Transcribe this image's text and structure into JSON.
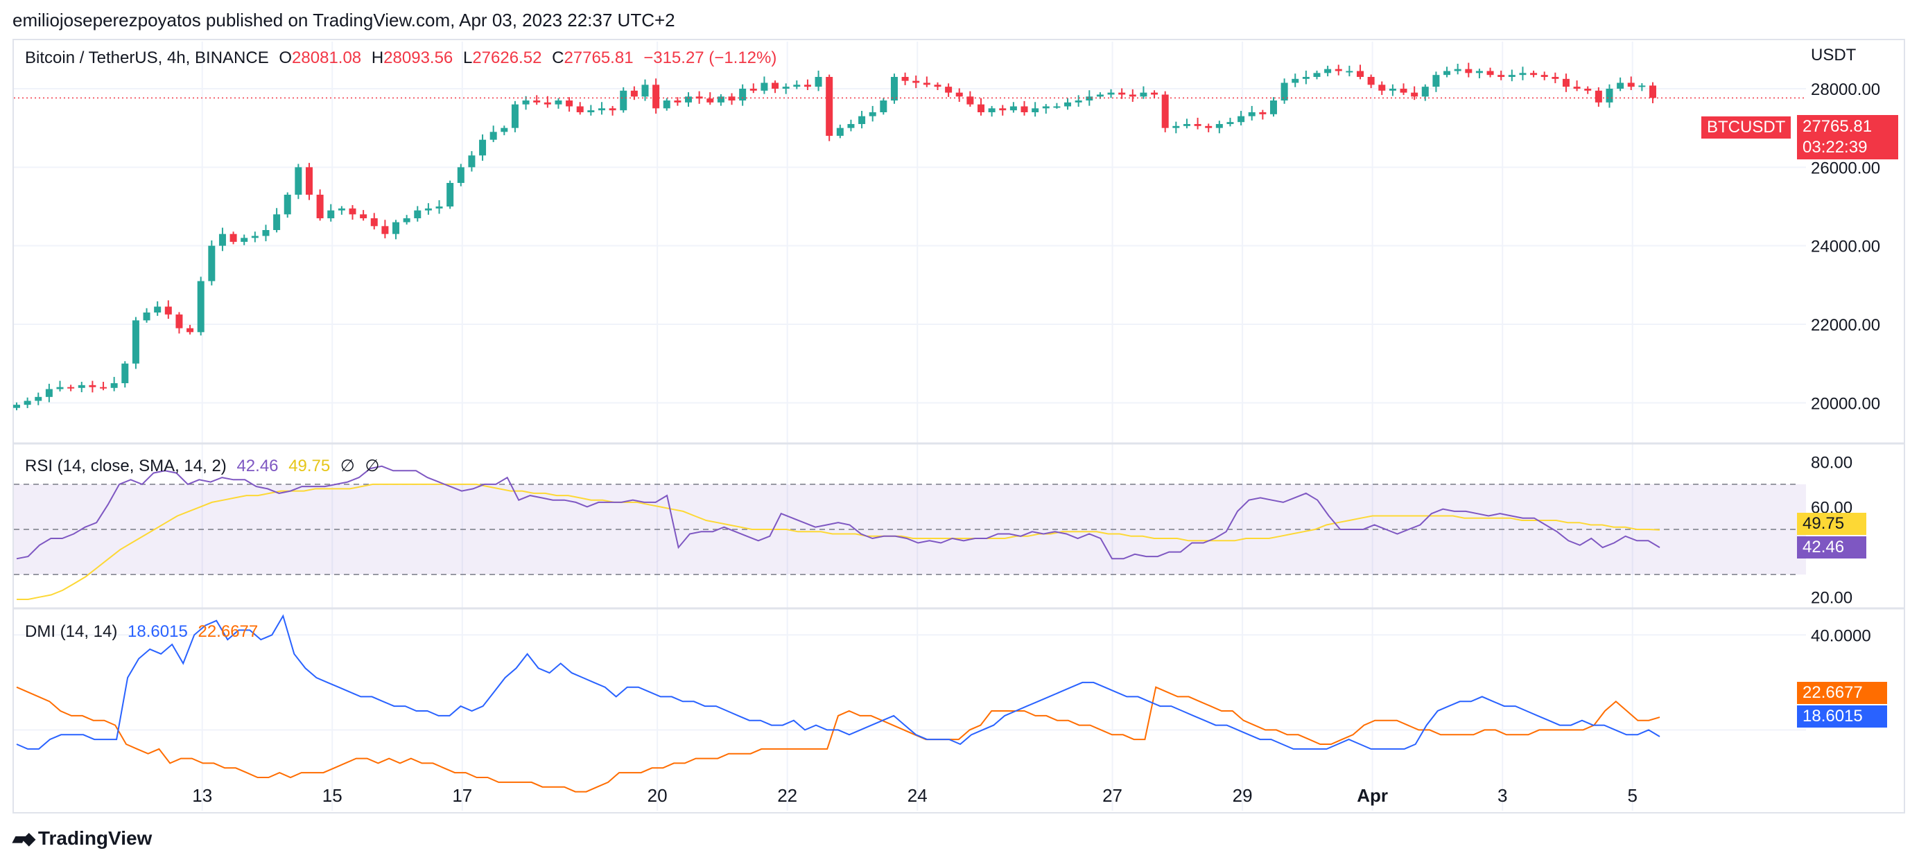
{
  "header": {
    "publisher": "emiliojoseperezpoyatos published on TradingView.com, Apr 03, 2023 22:37 UTC+2"
  },
  "legend": {
    "symbol": "Bitcoin / TetherUS, 4h, BINANCE",
    "o_label": "O",
    "o_val": "28081.08",
    "h_label": "H",
    "h_val": "28093.56",
    "l_label": "L",
    "l_val": "27626.52",
    "c_label": "C",
    "c_val": "27765.81",
    "change": "−315.27 (−1.12%)"
  },
  "rsi_legend": {
    "name": "RSI (14, close, SMA, 14, 2)",
    "rsi": "42.46",
    "sma": "49.75",
    "icons": [
      "∅",
      "∅"
    ]
  },
  "dmi_legend": {
    "name": "DMI (14, 14)",
    "plus": "18.6015",
    "minus": "22.6677"
  },
  "price_axis": {
    "unit": "USDT",
    "ticks": [
      "28000.00",
      "26000.00",
      "24000.00",
      "22000.00",
      "20000.00"
    ]
  },
  "rsi_axis": {
    "ticks": [
      "80.00",
      "60.00",
      "20.00"
    ]
  },
  "dmi_axis": {
    "ticks": [
      "40.0000"
    ]
  },
  "tags": {
    "symbol": "BTCUSDT",
    "price": "27765.81",
    "countdown": "03:22:39",
    "rsi_sma": "49.75",
    "rsi": "42.46",
    "dmi_minus": "22.6677",
    "dmi_plus": "18.6015"
  },
  "x_axis": {
    "labels": [
      "13",
      "15",
      "17",
      "20",
      "22",
      "24",
      "27",
      "29",
      "Apr",
      "3",
      "5"
    ]
  },
  "footer": {
    "brand": "TradingView"
  },
  "colors": {
    "up": "#26a69a",
    "down": "#f23645",
    "rsi": "#7e57c2",
    "rsi_sma": "#fdd835",
    "di_plus": "#2962ff",
    "di_minus": "#ff6d00",
    "grid": "#f0f3fa"
  },
  "chart_data": [
    {
      "type": "candlestick",
      "title": "Bitcoin / TetherUS, 4h, BINANCE",
      "ylabel": "USDT",
      "ylim": [
        19000,
        29200
      ],
      "candles_close": [
        19950,
        20050,
        20150,
        20350,
        20400,
        20380,
        20450,
        20400,
        20380,
        20500,
        21000,
        22100,
        22300,
        22450,
        22250,
        21900,
        21800,
        23100,
        24000,
        24300,
        24100,
        24200,
        24250,
        24400,
        24800,
        25300,
        26000,
        25300,
        24700,
        24900,
        24950,
        24800,
        24700,
        24500,
        24300,
        24600,
        24700,
        24900,
        24950,
        25000,
        25600,
        26000,
        26300,
        26700,
        26900,
        27000,
        27600,
        27700,
        27650,
        27600,
        27700,
        27550,
        27400,
        27450,
        27500,
        27450,
        27950,
        27800,
        28100,
        27500,
        27700,
        27650,
        27800,
        27750,
        27650,
        27800,
        27700,
        28000,
        27950,
        28150,
        28000,
        28050,
        28100,
        28050,
        28300,
        26800,
        27000,
        27100,
        27300,
        27400,
        27700,
        28300,
        28200,
        28150,
        28100,
        28050,
        27900,
        27800,
        27600,
        27400,
        27500,
        27450,
        27550,
        27400,
        27500,
        27550,
        27550,
        27650,
        27700,
        27800,
        27850,
        27900,
        27850,
        27800,
        27900,
        27850,
        27000,
        27050,
        27100,
        27050,
        27000,
        27100,
        27150,
        27300,
        27400,
        27350,
        27700,
        28150,
        28250,
        28300,
        28400,
        28500,
        28450,
        28450,
        28300,
        28100,
        27950,
        28000,
        27900,
        27800,
        28050,
        28350,
        28450,
        28500,
        28400,
        28450,
        28350,
        28300,
        28350,
        28400,
        28350,
        28300,
        28250,
        28050,
        28000,
        27950,
        27650,
        28000,
        28150,
        28050,
        28080,
        27765
      ]
    },
    {
      "type": "line",
      "title": "RSI (14, close, SMA, 14, 2)",
      "ylim": [
        15,
        85
      ],
      "series": [
        {
          "name": "RSI",
          "values": [
            37,
            38,
            43,
            46,
            46,
            48,
            51,
            53,
            61,
            70,
            72,
            70,
            75,
            76,
            75,
            70,
            72,
            71,
            73,
            72,
            72,
            69,
            68,
            66,
            67,
            69,
            69,
            69,
            70,
            71,
            73,
            77,
            78,
            76,
            76,
            76,
            73,
            71,
            69,
            67,
            68,
            70,
            70,
            73,
            63,
            65,
            64,
            63,
            63,
            62,
            60,
            62,
            62,
            62,
            63,
            62,
            62,
            65,
            42,
            48,
            49,
            49,
            51,
            49,
            47,
            45,
            47,
            57,
            55,
            53,
            51,
            52,
            53,
            52,
            48,
            46,
            47,
            47,
            46,
            44,
            45,
            44,
            46,
            45,
            46,
            46,
            48,
            48,
            47,
            49,
            48,
            49,
            48,
            46,
            48,
            46,
            37,
            37,
            39,
            38,
            38,
            40,
            40,
            44,
            44,
            46,
            49,
            58,
            63,
            64,
            63,
            62,
            64,
            66,
            63,
            56,
            50,
            50,
            50,
            52,
            50,
            48,
            50,
            52,
            57,
            59,
            58,
            58,
            57,
            56,
            57,
            56,
            55,
            55,
            52,
            49,
            45,
            43,
            46,
            42,
            44,
            47,
            45,
            45,
            42
          ],
          "last": 42.46
        },
        {
          "name": "RSI-based MA",
          "values": [
            19,
            19,
            20,
            21,
            23,
            26,
            29,
            33,
            37,
            41,
            44,
            47,
            50,
            53,
            56,
            58,
            60,
            62,
            63,
            64,
            65,
            65,
            66,
            67,
            67,
            67,
            68,
            68,
            68,
            68,
            69,
            70,
            70,
            70,
            70,
            70,
            70,
            70,
            70,
            70,
            70,
            69,
            68,
            67,
            67,
            66,
            66,
            65,
            65,
            64,
            63,
            63,
            62,
            62,
            62,
            61,
            60,
            59,
            58,
            56,
            54,
            53,
            52,
            51,
            50,
            50,
            50,
            50,
            49,
            49,
            49,
            48,
            48,
            48,
            47,
            47,
            47,
            47,
            46,
            46,
            46,
            46,
            46,
            46,
            46,
            46,
            46,
            47,
            47,
            48,
            48,
            49,
            49,
            49,
            49,
            48,
            48,
            47,
            47,
            46,
            46,
            46,
            45,
            45,
            45,
            45,
            45,
            46,
            46,
            46,
            47,
            48,
            49,
            50,
            52,
            53,
            54,
            55,
            56,
            56,
            56,
            56,
            56,
            56,
            56,
            56,
            55,
            55,
            55,
            55,
            55,
            54,
            54,
            54,
            54,
            53,
            53,
            52,
            52,
            51,
            51,
            50,
            50,
            49.75
          ],
          "last": 49.75
        }
      ],
      "bands": {
        "upper": 70,
        "middle": 50,
        "lower": 30
      }
    },
    {
      "type": "line",
      "title": "DMI (14, 14)",
      "ylim": [
        3,
        45
      ],
      "series": [
        {
          "name": "+DI",
          "values": [
            17,
            16,
            16,
            18,
            19,
            19,
            19,
            18,
            18,
            18,
            31,
            35,
            37,
            36,
            38,
            34,
            40,
            42,
            43,
            39,
            41,
            41,
            39,
            40,
            44,
            36,
            33,
            31,
            30,
            29,
            28,
            27,
            27,
            26,
            25,
            25,
            24,
            24,
            23,
            23,
            25,
            24,
            25,
            28,
            31,
            33,
            36,
            33,
            32,
            34,
            32,
            31,
            30,
            29,
            27,
            29,
            29,
            28,
            27,
            27,
            26,
            26,
            25,
            25,
            24,
            23,
            22,
            22,
            21,
            21,
            22,
            20,
            21,
            20,
            20,
            19,
            20,
            21,
            22,
            23,
            21,
            19,
            18,
            18,
            18,
            17,
            19,
            20,
            21,
            23,
            24,
            25,
            26,
            27,
            28,
            29,
            30,
            30,
            29,
            28,
            27,
            27,
            26,
            25,
            25,
            24,
            23,
            22,
            21,
            21,
            20,
            19,
            18,
            18,
            17,
            16,
            16,
            16,
            16,
            17,
            18,
            17,
            16,
            16,
            16,
            16,
            17,
            21,
            24,
            25,
            26,
            26,
            27,
            26,
            25,
            25,
            24,
            23,
            22,
            21,
            21,
            22,
            21,
            21,
            20,
            19,
            19,
            20,
            18.6
          ],
          "last": 18.6015
        },
        {
          "name": "−DI",
          "values": [
            29,
            28,
            27,
            26,
            24,
            23,
            23,
            22,
            22,
            21,
            17,
            16,
            15,
            16,
            13,
            14,
            14,
            13,
            13,
            12,
            12,
            11,
            10,
            10,
            11,
            10,
            11,
            11,
            11,
            12,
            13,
            14,
            14,
            13,
            14,
            13,
            14,
            13,
            13,
            12,
            11,
            11,
            10,
            10,
            9,
            9,
            9,
            9,
            8,
            8,
            8,
            7,
            7,
            8,
            9,
            11,
            11,
            11,
            12,
            12,
            13,
            13,
            14,
            14,
            14,
            15,
            15,
            15,
            16,
            16,
            16,
            16,
            16,
            16,
            16,
            23,
            24,
            23,
            23,
            22,
            21,
            20,
            19,
            18,
            18,
            18,
            18,
            20,
            21,
            24,
            24,
            24,
            24,
            23,
            23,
            22,
            22,
            21,
            21,
            20,
            19,
            19,
            18,
            18,
            29,
            28,
            27,
            27,
            26,
            25,
            24,
            24,
            22,
            21,
            20,
            20,
            19,
            19,
            18,
            17,
            17,
            18,
            19,
            21,
            22,
            22,
            22,
            21,
            20,
            20,
            19,
            19,
            19,
            19,
            20,
            20,
            19,
            19,
            19,
            20,
            20,
            20,
            20,
            20,
            21,
            24,
            26,
            24,
            22,
            22,
            22.67
          ],
          "last": 22.6677
        }
      ]
    }
  ]
}
